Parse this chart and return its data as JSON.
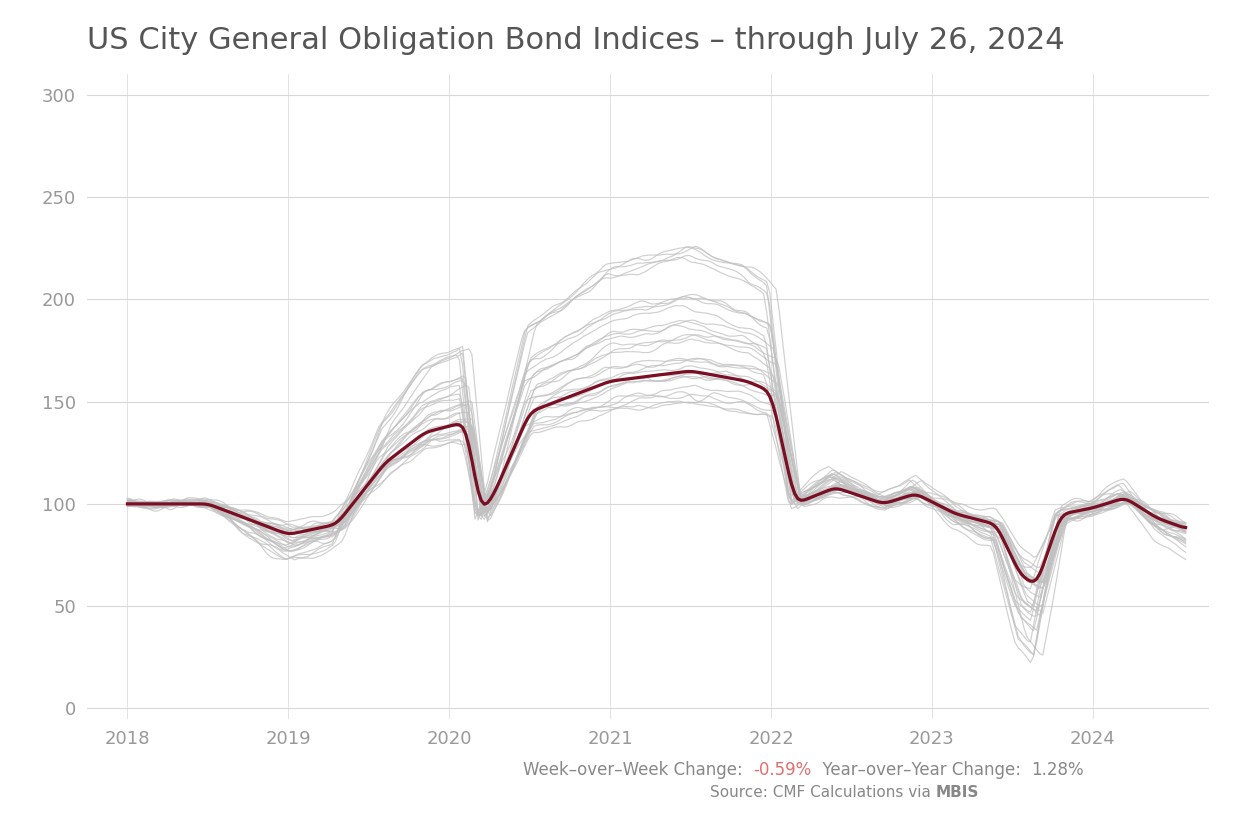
{
  "title": "US City General Obligation Bond Indices – through July 26, 2024",
  "title_fontsize": 22,
  "title_color": "#555555",
  "background_color": "#ffffff",
  "yticks": [
    0,
    50,
    100,
    150,
    200,
    250,
    300
  ],
  "ylim": [
    -5,
    310
  ],
  "xlim_start": 2017.75,
  "xlim_end": 2024.72,
  "xtick_labels": [
    "2018",
    "2019",
    "2020",
    "2021",
    "2022",
    "2023",
    "2024"
  ],
  "xtick_positions": [
    2018,
    2019,
    2020,
    2021,
    2022,
    2023,
    2024
  ],
  "grid_color": "#d8d8d8",
  "line_color_gray": "#c0c0c0",
  "line_color_red": "#7a0e22",
  "line_alpha_gray": 0.75,
  "annotation_wow_color": "#e07070",
  "annotation_color": "#888888",
  "annotation_fontsize": 12,
  "num_gray_lines": 28,
  "seed": 42
}
